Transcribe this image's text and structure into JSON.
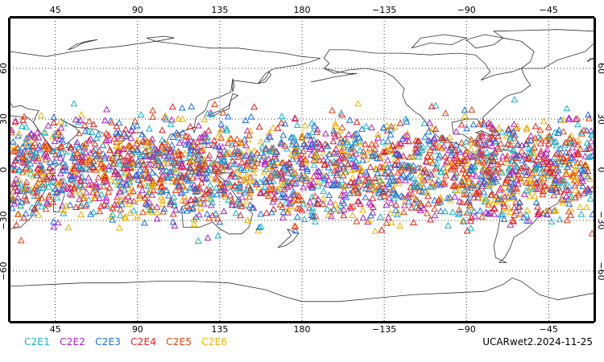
{
  "map": {
    "projection": "cylindrical equidistant, Pacific-centred",
    "lon_range": [
      20,
      340
    ],
    "lat_range": [
      -90,
      90
    ],
    "grid": "dotted, every 45 deg longitude and 30 deg latitude",
    "top_lon_labels": [
      "45",
      "90",
      "135",
      "180",
      "−135",
      "−90",
      "−45"
    ],
    "bottom_lon_labels": [
      "45",
      "90",
      "135",
      "180",
      "−135",
      "−90",
      "−45"
    ],
    "lat_labels": [
      "60",
      "30",
      "0",
      "−30",
      "−60"
    ],
    "marker": "open triangle"
  },
  "legend": {
    "items": [
      {
        "label": "C2E1",
        "color": "#1ab0c8"
      },
      {
        "label": "C2E2",
        "color": "#b020c0"
      },
      {
        "label": "C2E3",
        "color": "#1a70e0"
      },
      {
        "label": "C2E4",
        "color": "#e02020"
      },
      {
        "label": "C2E5",
        "color": "#e04010"
      },
      {
        "label": "C2E6",
        "color": "#f0b000"
      }
    ]
  },
  "footer": {
    "product_label": "UCARwet2.2024-11-25"
  },
  "observations": {
    "lat_band": [
      -45,
      45
    ],
    "density_note": "dense global coverage between about 45S and 45N"
  }
}
